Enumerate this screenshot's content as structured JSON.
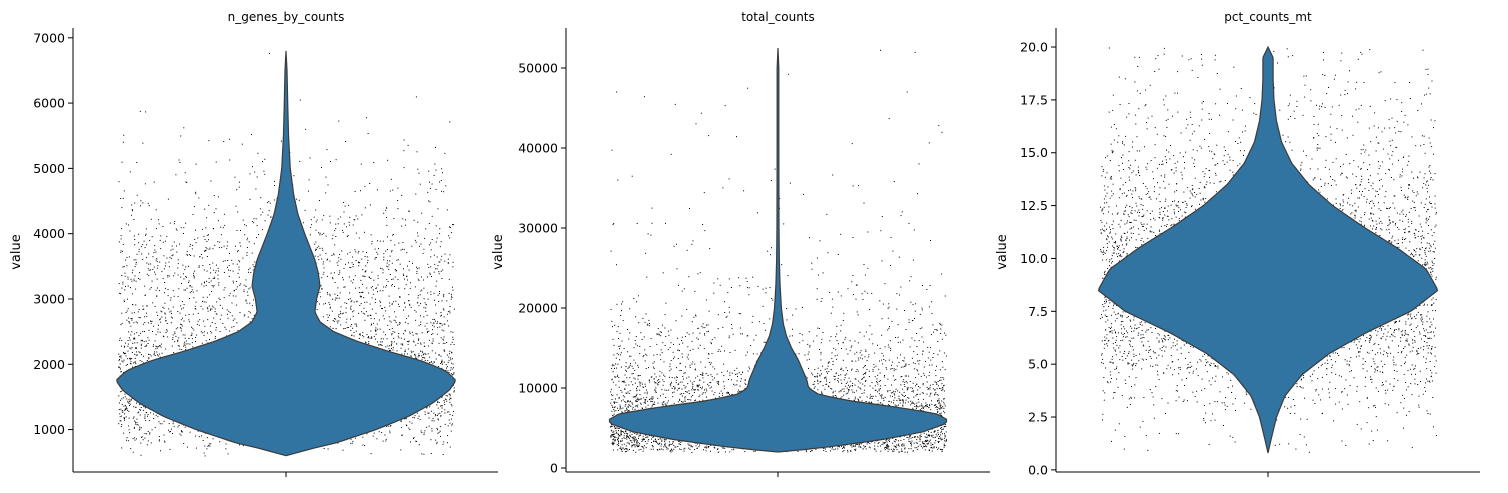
{
  "chart_data": [
    {
      "type": "violin",
      "title": "n_genes_by_counts",
      "xlabel": "",
      "ylabel": "value",
      "ylim": [
        350,
        7150
      ],
      "yticks": [
        1000,
        2000,
        3000,
        4000,
        5000,
        6000,
        7000
      ],
      "ytick_labels": [
        "1000",
        "2000",
        "3000",
        "4000",
        "5000",
        "6000",
        "7000"
      ],
      "fill_color": "#3274a1",
      "point_color": "#000000",
      "grid": false,
      "violin_profile": [
        [
          600,
          0.0
        ],
        [
          700,
          0.14
        ],
        [
          800,
          0.3
        ],
        [
          1000,
          0.53
        ],
        [
          1200,
          0.72
        ],
        [
          1400,
          0.86
        ],
        [
          1600,
          0.96
        ],
        [
          1750,
          1.0
        ],
        [
          1900,
          0.94
        ],
        [
          2050,
          0.8
        ],
        [
          2200,
          0.6
        ],
        [
          2350,
          0.42
        ],
        [
          2500,
          0.28
        ],
        [
          2650,
          0.2
        ],
        [
          2800,
          0.17
        ],
        [
          3000,
          0.18
        ],
        [
          3200,
          0.2
        ],
        [
          3400,
          0.19
        ],
        [
          3600,
          0.17
        ],
        [
          3800,
          0.14
        ],
        [
          4000,
          0.11
        ],
        [
          4300,
          0.07
        ],
        [
          4600,
          0.045
        ],
        [
          5000,
          0.025
        ],
        [
          5500,
          0.015
        ],
        [
          6000,
          0.01
        ],
        [
          6500,
          0.006
        ],
        [
          6800,
          0.0
        ]
      ],
      "scatter_range": [
        600,
        6800
      ],
      "scatter_density": [
        [
          600,
          0.03
        ],
        [
          900,
          0.2
        ],
        [
          1200,
          0.5
        ],
        [
          1500,
          0.85
        ],
        [
          1750,
          1.0
        ],
        [
          2000,
          0.7
        ],
        [
          2300,
          0.4
        ],
        [
          2600,
          0.3
        ],
        [
          3000,
          0.27
        ],
        [
          3400,
          0.25
        ],
        [
          3800,
          0.18
        ],
        [
          4200,
          0.1
        ],
        [
          4600,
          0.05
        ],
        [
          5000,
          0.025
        ],
        [
          5500,
          0.012
        ],
        [
          6000,
          0.006
        ],
        [
          6800,
          0.002
        ]
      ],
      "n_points": 5200
    },
    {
      "type": "violin",
      "title": "total_counts",
      "xlabel": "",
      "ylabel": "value",
      "ylim": [
        -500,
        55000
      ],
      "yticks": [
        0,
        10000,
        20000,
        30000,
        40000,
        50000
      ],
      "ytick_labels": [
        "0",
        "10000",
        "20000",
        "30000",
        "40000",
        "50000"
      ],
      "fill_color": "#3274a1",
      "point_color": "#000000",
      "grid": false,
      "violin_profile": [
        [
          2000,
          0.0
        ],
        [
          2500,
          0.25
        ],
        [
          3500,
          0.6
        ],
        [
          4500,
          0.85
        ],
        [
          5500,
          0.98
        ],
        [
          6000,
          1.0
        ],
        [
          6800,
          0.93
        ],
        [
          7600,
          0.7
        ],
        [
          8400,
          0.42
        ],
        [
          9200,
          0.24
        ],
        [
          10000,
          0.18
        ],
        [
          11000,
          0.17
        ],
        [
          12000,
          0.15
        ],
        [
          13500,
          0.12
        ],
        [
          15000,
          0.08
        ],
        [
          16500,
          0.05
        ],
        [
          18000,
          0.032
        ],
        [
          20000,
          0.02
        ],
        [
          23000,
          0.012
        ],
        [
          26000,
          0.008
        ],
        [
          30000,
          0.006
        ],
        [
          40000,
          0.005
        ],
        [
          50000,
          0.005
        ],
        [
          52500,
          0.0
        ]
      ],
      "scatter_range": [
        2000,
        52500
      ],
      "scatter_density": [
        [
          2000,
          0.3
        ],
        [
          3000,
          0.7
        ],
        [
          4500,
          0.95
        ],
        [
          6000,
          1.0
        ],
        [
          7500,
          0.7
        ],
        [
          9000,
          0.38
        ],
        [
          11000,
          0.25
        ],
        [
          13000,
          0.17
        ],
        [
          15000,
          0.1
        ],
        [
          18000,
          0.055
        ],
        [
          21000,
          0.028
        ],
        [
          25000,
          0.014
        ],
        [
          30000,
          0.007
        ],
        [
          40000,
          0.003
        ],
        [
          52500,
          0.001
        ]
      ],
      "n_points": 5200
    },
    {
      "type": "violin",
      "title": "pct_counts_mt",
      "xlabel": "",
      "ylabel": "value",
      "ylim": [
        -0.1,
        20.9
      ],
      "yticks": [
        0.0,
        2.5,
        5.0,
        7.5,
        10.0,
        12.5,
        15.0,
        17.5,
        20.0
      ],
      "ytick_labels": [
        "0.0",
        "2.5",
        "5.0",
        "7.5",
        "10.0",
        "12.5",
        "15.0",
        "17.5",
        "20.0"
      ],
      "fill_color": "#3274a1",
      "point_color": "#000000",
      "grid": false,
      "violin_profile": [
        [
          0.8,
          0.0
        ],
        [
          1.5,
          0.02
        ],
        [
          2.5,
          0.05
        ],
        [
          3.5,
          0.1
        ],
        [
          4.5,
          0.2
        ],
        [
          5.5,
          0.36
        ],
        [
          6.5,
          0.58
        ],
        [
          7.5,
          0.84
        ],
        [
          8.5,
          1.0
        ],
        [
          9.5,
          0.93
        ],
        [
          10.5,
          0.76
        ],
        [
          11.5,
          0.56
        ],
        [
          12.5,
          0.38
        ],
        [
          13.5,
          0.24
        ],
        [
          14.5,
          0.14
        ],
        [
          15.5,
          0.08
        ],
        [
          16.5,
          0.05
        ],
        [
          17.5,
          0.035
        ],
        [
          18.5,
          0.03
        ],
        [
          19.5,
          0.03
        ],
        [
          20.0,
          0.0
        ]
      ],
      "scatter_range": [
        0.8,
        20.0
      ],
      "scatter_density": [
        [
          0.8,
          0.01
        ],
        [
          2.5,
          0.06
        ],
        [
          4.0,
          0.2
        ],
        [
          5.5,
          0.45
        ],
        [
          7.0,
          0.8
        ],
        [
          8.5,
          1.0
        ],
        [
          10.0,
          0.85
        ],
        [
          11.5,
          0.6
        ],
        [
          13.0,
          0.38
        ],
        [
          14.5,
          0.22
        ],
        [
          16.0,
          0.12
        ],
        [
          17.5,
          0.07
        ],
        [
          19.0,
          0.05
        ],
        [
          20.0,
          0.04
        ]
      ],
      "n_points": 5200
    }
  ]
}
